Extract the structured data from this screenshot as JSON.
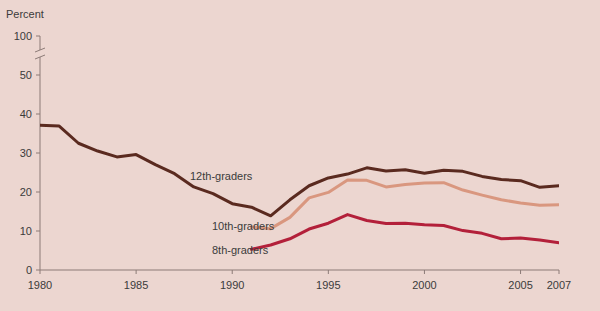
{
  "chart_data": {
    "type": "line",
    "y_label": "Percent",
    "x": [
      1980,
      1981,
      1982,
      1983,
      1984,
      1985,
      1986,
      1987,
      1988,
      1989,
      1990,
      1991,
      1992,
      1993,
      1994,
      1995,
      1996,
      1997,
      1998,
      1999,
      2000,
      2001,
      2002,
      2003,
      2004,
      2005,
      2006,
      2007
    ],
    "series": [
      {
        "name": "12th-graders",
        "color": "#5a2a1f",
        "values": [
          37.1,
          36.9,
          32.5,
          30.5,
          29.0,
          29.6,
          27.0,
          24.7,
          21.3,
          19.6,
          17.0,
          16.1,
          13.9,
          18.0,
          21.6,
          23.6,
          24.6,
          26.2,
          25.4,
          25.7,
          24.8,
          25.6,
          25.3,
          24.0,
          23.2,
          22.9,
          21.2,
          21.6
        ]
      },
      {
        "name": "10th-graders",
        "color": "#d9977f",
        "values": [
          null,
          null,
          null,
          null,
          null,
          null,
          null,
          null,
          null,
          null,
          null,
          11.0,
          10.6,
          13.5,
          18.5,
          19.9,
          23.1,
          23.0,
          21.3,
          21.9,
          22.3,
          22.4,
          20.5,
          19.2,
          18.0,
          17.2,
          16.6,
          16.7
        ]
      },
      {
        "name": "8th-graders",
        "color": "#b3203a",
        "values": [
          null,
          null,
          null,
          null,
          null,
          null,
          null,
          null,
          null,
          null,
          null,
          5.3,
          6.4,
          8.0,
          10.5,
          12.0,
          14.2,
          12.7,
          11.9,
          12.0,
          11.6,
          11.4,
          10.1,
          9.4,
          8.0,
          8.2,
          7.7,
          7.0
        ]
      }
    ],
    "xlim": [
      1980,
      2007
    ],
    "xticks": [
      1980,
      1985,
      1990,
      1995,
      2000,
      2005,
      2007
    ],
    "ylim": [
      0,
      100
    ],
    "yticks": [
      0,
      10,
      20,
      30,
      40,
      50,
      100
    ],
    "grid": false
  }
}
